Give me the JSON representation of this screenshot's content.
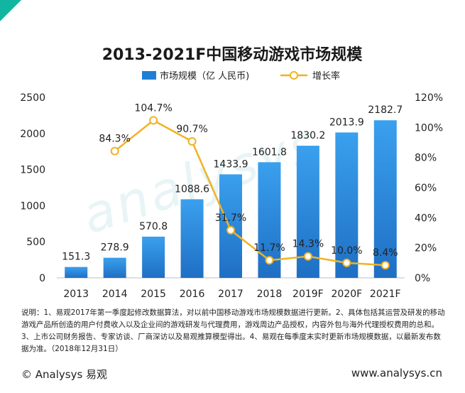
{
  "chart_data": {
    "type": "bar+line",
    "title": "2013-2021F中国移动游戏市场规模",
    "categories": [
      "2013",
      "2014",
      "2015",
      "2016",
      "2017",
      "2018",
      "2019F",
      "2020F",
      "2021F"
    ],
    "series": [
      {
        "name": "市场规模（亿 人民币)",
        "type": "bar",
        "axis": "left",
        "values": [
          151.3,
          278.9,
          570.8,
          1088.6,
          1433.9,
          1601.8,
          1830.2,
          2013.9,
          2182.7
        ],
        "labels": [
          "151.3",
          "278.9",
          "570.8",
          "1088.6",
          "1433.9",
          "1601.8",
          "1830.2",
          "2013.9",
          "2182.7"
        ]
      },
      {
        "name": "增长率",
        "type": "line",
        "axis": "right",
        "values": [
          null,
          84.3,
          104.7,
          90.7,
          31.7,
          11.7,
          14.3,
          10.0,
          8.4
        ],
        "labels": [
          null,
          "84.3%",
          "104.7%",
          "90.7%",
          "31.7%",
          "11.7%",
          "14.3%",
          "10.0%",
          "8.4%"
        ]
      }
    ],
    "ylim_left": [
      0,
      2500
    ],
    "yticks_left": [
      0,
      500,
      1000,
      1500,
      2000,
      2500
    ],
    "ylim_right": [
      0,
      120
    ],
    "yticks_right": [
      "0%",
      "20%",
      "40%",
      "60%",
      "80%",
      "100%",
      "120%"
    ],
    "legend_position": "top",
    "colors": {
      "bar": "#1f7fd6",
      "bar_light": "#3aa0ee",
      "line": "#f0b323",
      "marker_fill": "#ffffff",
      "accent": "#12b5a0"
    }
  },
  "note": "说明：1、易观2017年第一季度起修改数据算法，对以前中国移动游戏市场规模数据进行更新。2、具体包括其运营及研发的移动游戏产品所创造的用户付费收入以及企业间的游戏研发与代理费用，游戏周边产品授权，内容外包与海外代理授权费用的总和。3、上市公司财务报告、专家访谈、厂商深访以及易观推算模型得出。4、易观在每季度末实时更新市场规模数据，以最新发布数据为准。（2018年12月31日）",
  "footer": {
    "brand": "© Analysys 易观",
    "website": "www.analysys.cn"
  }
}
